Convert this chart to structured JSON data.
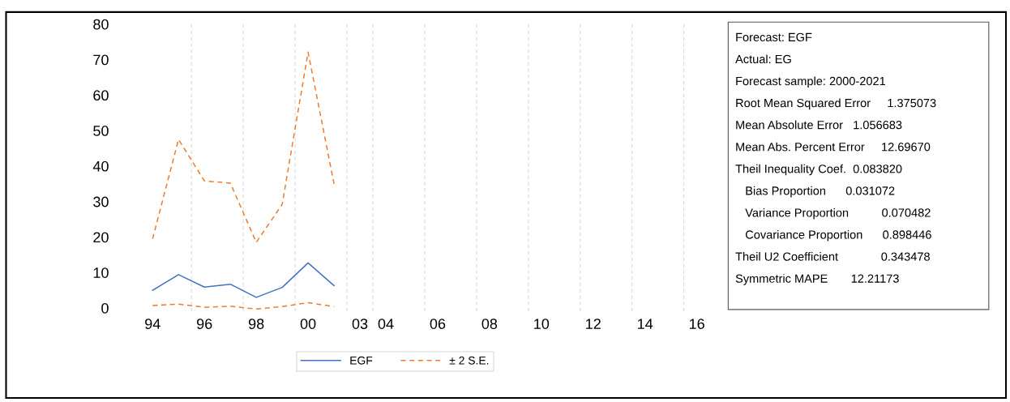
{
  "chart_data": {
    "type": "line",
    "categories": [
      "94",
      null,
      "96",
      null,
      "98",
      null,
      "00",
      null,
      "03",
      "04",
      null,
      "06",
      null,
      "08",
      null,
      "10",
      null,
      "12",
      null,
      "14",
      null,
      "16"
    ],
    "series": [
      {
        "name": "EGF",
        "color": "#4472c4",
        "line_style": "solid",
        "values": [
          5.0,
          9.4,
          5.9,
          6.7,
          3.0,
          5.8,
          12.7,
          6.3,
          null,
          null,
          null,
          null,
          null,
          null,
          null,
          null,
          null,
          null,
          null,
          null,
          null,
          null
        ]
      },
      {
        "name": "± 2 S.E.",
        "color": "#ed7d31",
        "line_style": "dashed",
        "values": [
          19.5,
          47.5,
          35.8,
          35.2,
          18.5,
          29.2,
          72.1,
          35.0,
          null,
          null,
          null,
          null,
          null,
          null,
          null,
          null,
          null,
          null,
          null,
          null,
          null,
          null
        ]
      },
      {
        "color": "#ed7d31",
        "line_style": "dashed",
        "values": [
          0.7,
          1.1,
          0.2,
          0.5,
          -0.3,
          0.4,
          1.5,
          0.4,
          null,
          null,
          null,
          null,
          null,
          null,
          null,
          null,
          null,
          null,
          null,
          null,
          null,
          null
        ]
      }
    ],
    "ylim": [
      -1,
      80
    ],
    "yticks": [
      0,
      10,
      20,
      30,
      40,
      50,
      60,
      70,
      80
    ],
    "grid": "x",
    "legend": "bottom",
    "marker": "none",
    "annotations": [
      "Forecast: EGF",
      "Actual: EG",
      "Forecast sample: 2000-2021",
      "Root Mean Squared Error     1.375073",
      "Mean Absolute Error   1.056683",
      "Mean Abs. Percent Error     12.69670",
      "Theil Inequality Coef.  0.083820",
      "   Bias Proportion      0.031072",
      "   Variance Proportion          0.070482",
      "   Covariance Proportion      0.898446",
      "Theil U2 Coefficient             0.343478",
      "Symmetric MAPE       12.21173"
    ]
  }
}
